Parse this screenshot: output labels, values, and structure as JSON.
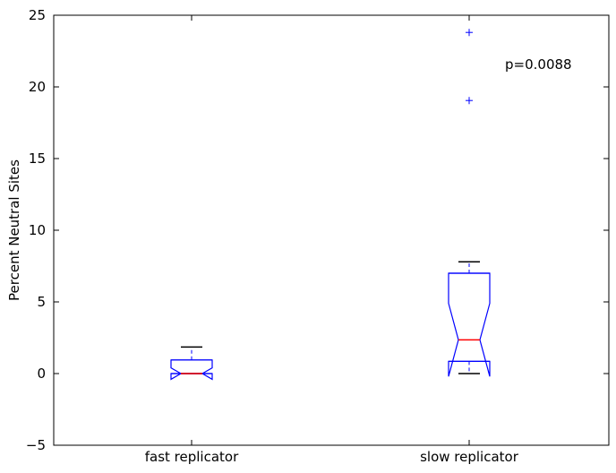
{
  "chart_data": {
    "type": "box",
    "title": "",
    "xlabel": "",
    "ylabel": "Percent Neutral Sites",
    "ylim": [
      -5,
      25
    ],
    "yticks": [
      -5,
      0,
      5,
      10,
      15,
      20,
      25
    ],
    "ytick_labels": [
      "−5",
      "0",
      "5",
      "10",
      "15",
      "20",
      "25"
    ],
    "notched": true,
    "categories": [
      "fast replicator",
      "slow replicator"
    ],
    "boxes": [
      {
        "name": "fast replicator",
        "whisker_low": 0,
        "q1": 0,
        "median": 0,
        "q3": 0.95,
        "whisker_high": 1.85,
        "notch_low": -0.4,
        "notch_high": 0.4,
        "outliers": []
      },
      {
        "name": "slow replicator",
        "whisker_low": 0,
        "q1": 0.85,
        "median": 2.35,
        "q3": 7.0,
        "whisker_high": 7.8,
        "notch_low": -0.2,
        "notch_high": 4.9,
        "outliers": [
          19.05,
          23.8
        ]
      }
    ],
    "annotation": "p=0.0088",
    "colors": {
      "box": "#0000ff",
      "median": "#ff0000",
      "cap": "#000000",
      "outlier": "#0000ff"
    }
  }
}
